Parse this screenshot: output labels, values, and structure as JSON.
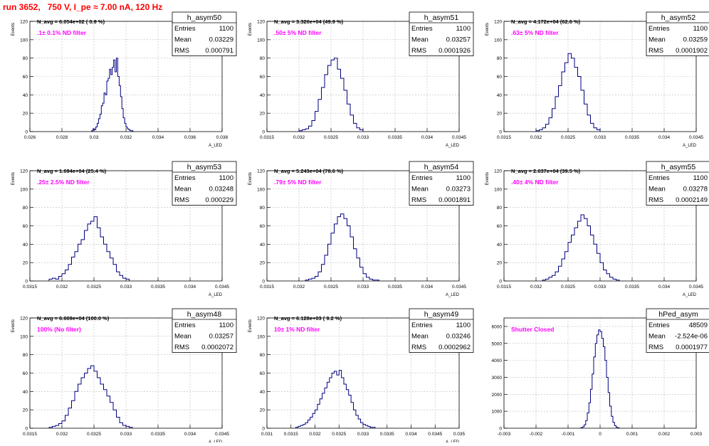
{
  "run_title": "run 3652,   750 V, I_pe ≈ 7.00 nA, 120 Hz",
  "colors": {
    "hist": "#000080",
    "annotation": "#ff00ff",
    "title": "#ff0000",
    "grid": "#bbbbbb"
  },
  "chart_data": [
    {
      "type": "histogram",
      "name": "h_asym50",
      "ylabel": "Events",
      "xlabel": "A_LED",
      "xlim": [
        0.026,
        0.04
      ],
      "ylim": [
        0,
        120
      ],
      "xticks": [
        "0.026",
        "0.028",
        "0.03",
        "0.032",
        "0.034",
        "0.036",
        "0.038"
      ],
      "yticks": [
        "0",
        "20",
        "40",
        "60",
        "80",
        "100",
        "120"
      ],
      "n_avg": "N_avg = 6.054e+02 ( 0.9 %)",
      "filter": ".1± 0.1% ND filter",
      "stats": [
        [
          "Entries",
          "1100"
        ],
        [
          "Mean",
          "0.03229"
        ],
        [
          "RMS",
          "0.000791"
        ]
      ],
      "bin_edges": [
        0.0305,
        0.0306,
        0.0307,
        0.0308,
        0.0309,
        0.031,
        0.0311,
        0.0312,
        0.0313,
        0.0314,
        0.0315,
        0.0316,
        0.0317,
        0.0318,
        0.0319,
        0.032,
        0.0321,
        0.0322,
        0.0323,
        0.0324,
        0.0325,
        0.0326,
        0.0327,
        0.0328,
        0.0329,
        0.033,
        0.0331,
        0.0332,
        0.0333,
        0.0334,
        0.0335,
        0.0336
      ],
      "counts": [
        1,
        3,
        2,
        5,
        9,
        14,
        19,
        28,
        31,
        42,
        40,
        55,
        58,
        68,
        62,
        70,
        78,
        65,
        80,
        60,
        50,
        38,
        25,
        15,
        9,
        5,
        3,
        2,
        1,
        1,
        0
      ]
    },
    {
      "type": "histogram",
      "name": "h_asym51",
      "ylabel": "Events",
      "xlabel": "A_LED",
      "xlim": [
        0.0315,
        0.0345
      ],
      "ylim": [
        0,
        120
      ],
      "xticks": [
        "0.0315",
        "0.032",
        "0.0325",
        "0.033",
        "0.0335",
        "0.034",
        "0.0345"
      ],
      "yticks": [
        "0",
        "20",
        "40",
        "60",
        "80",
        "100",
        "120"
      ],
      "n_avg": "N_avg = 3.326e+04 (49.9 %)",
      "filter": ".50± 5% ND filter",
      "stats": [
        [
          "Entries",
          "1100"
        ],
        [
          "Mean",
          "0.03257"
        ],
        [
          "RMS",
          "0.0001926"
        ]
      ],
      "bin_edges": [
        0.032,
        0.03205,
        0.0321,
        0.03215,
        0.0322,
        0.03225,
        0.0323,
        0.03235,
        0.0324,
        0.03245,
        0.0325,
        0.03255,
        0.0326,
        0.03265,
        0.0327,
        0.03275,
        0.0328,
        0.03285,
        0.0329,
        0.03295,
        0.033
      ],
      "counts": [
        1,
        2,
        3,
        6,
        12,
        22,
        35,
        48,
        62,
        72,
        78,
        80,
        68,
        58,
        45,
        30,
        18,
        9,
        4,
        2
      ]
    },
    {
      "type": "histogram",
      "name": "h_asym52",
      "ylabel": "Events",
      "xlabel": "A_LED",
      "xlim": [
        0.0315,
        0.0345
      ],
      "ylim": [
        0,
        120
      ],
      "xticks": [
        "0.0315",
        "0.032",
        "0.0325",
        "0.033",
        "0.0335",
        "0.034",
        "0.0345"
      ],
      "yticks": [
        "0",
        "20",
        "40",
        "60",
        "80",
        "100",
        "120"
      ],
      "n_avg": "N_avg = 4.172e+04 (62.6 %)",
      "filter": ".63± 5% ND filter",
      "stats": [
        [
          "Entries",
          "1100"
        ],
        [
          "Mean",
          "0.03259"
        ],
        [
          "RMS",
          "0.0001902"
        ]
      ],
      "bin_edges": [
        0.032,
        0.03205,
        0.0321,
        0.03215,
        0.0322,
        0.03225,
        0.0323,
        0.03235,
        0.0324,
        0.03245,
        0.0325,
        0.03255,
        0.0326,
        0.03265,
        0.0327,
        0.03275,
        0.0328,
        0.03285,
        0.0329,
        0.03295,
        0.033
      ],
      "counts": [
        1,
        2,
        4,
        8,
        15,
        25,
        38,
        50,
        65,
        75,
        85,
        80,
        70,
        60,
        45,
        30,
        18,
        9,
        4,
        2
      ]
    },
    {
      "type": "histogram",
      "name": "h_asym53",
      "ylabel": "Events",
      "xlabel": "A_LED",
      "xlim": [
        0.0315,
        0.0345
      ],
      "ylim": [
        0,
        120
      ],
      "xticks": [
        "0.0315",
        "0.032",
        "0.0325",
        "0.033",
        "0.0335",
        "0.034",
        "0.0345"
      ],
      "yticks": [
        "0",
        "20",
        "40",
        "60",
        "80",
        "100",
        "120"
      ],
      "n_avg": "N_avg = 1.694e+04 (25.4 %)",
      "filter": ".25± 2.5% ND filter",
      "stats": [
        [
          "Entries",
          "1100"
        ],
        [
          "Mean",
          "0.03248"
        ],
        [
          "RMS",
          "0.000229"
        ]
      ],
      "bin_edges": [
        0.0318,
        0.03185,
        0.0319,
        0.03195,
        0.032,
        0.03205,
        0.0321,
        0.03215,
        0.0322,
        0.03225,
        0.0323,
        0.03235,
        0.0324,
        0.03245,
        0.0325,
        0.03255,
        0.0326,
        0.03265,
        0.0327,
        0.03275,
        0.0328,
        0.03285,
        0.0329,
        0.03295,
        0.033,
        0.03305
      ],
      "counts": [
        2,
        3,
        2,
        5,
        8,
        12,
        18,
        26,
        32,
        40,
        45,
        55,
        62,
        65,
        70,
        58,
        48,
        40,
        32,
        25,
        18,
        10,
        6,
        3,
        2
      ]
    },
    {
      "type": "histogram",
      "name": "h_asym54",
      "ylabel": "Events",
      "xlabel": "A_LED",
      "xlim": [
        0.0315,
        0.0345
      ],
      "ylim": [
        0,
        120
      ],
      "xticks": [
        "0.0315",
        "0.032",
        "0.0325",
        "0.033",
        "0.0335",
        "0.034",
        "0.0345"
      ],
      "yticks": [
        "0",
        "20",
        "40",
        "60",
        "80",
        "100",
        "120"
      ],
      "n_avg": "N_avg = 5.243e+04 (78.6 %)",
      "filter": ".79± 5% ND filter",
      "stats": [
        [
          "Entries",
          "1100"
        ],
        [
          "Mean",
          "0.03273"
        ],
        [
          "RMS",
          "0.0001891"
        ]
      ],
      "bin_edges": [
        0.0321,
        0.03215,
        0.0322,
        0.03225,
        0.0323,
        0.03235,
        0.0324,
        0.03245,
        0.0325,
        0.03255,
        0.0326,
        0.03265,
        0.0327,
        0.03275,
        0.0328,
        0.03285,
        0.0329,
        0.03295,
        0.033,
        0.03305,
        0.0331,
        0.03315,
        0.0332,
        0.03325
      ],
      "counts": [
        1,
        2,
        3,
        5,
        10,
        18,
        28,
        40,
        52,
        62,
        70,
        73,
        68,
        60,
        48,
        35,
        25,
        15,
        8,
        4,
        2,
        1,
        1
      ]
    },
    {
      "type": "histogram",
      "name": "h_asym55",
      "ylabel": "Events",
      "xlabel": "A_LED",
      "xlim": [
        0.0315,
        0.0345
      ],
      "ylim": [
        0,
        120
      ],
      "xticks": [
        "0.0315",
        "0.032",
        "0.0325",
        "0.033",
        "0.0335",
        "0.034",
        "0.0345"
      ],
      "yticks": [
        "0",
        "20",
        "40",
        "60",
        "80",
        "100",
        "120"
      ],
      "n_avg": "N_avg = 2.637e+04 (39.5 %)",
      "filter": ".40± 4% ND filter",
      "stats": [
        [
          "Entries",
          "1100"
        ],
        [
          "Mean",
          "0.03278"
        ],
        [
          "RMS",
          "0.0002149"
        ]
      ],
      "bin_edges": [
        0.0321,
        0.03215,
        0.0322,
        0.03225,
        0.0323,
        0.03235,
        0.0324,
        0.03245,
        0.0325,
        0.03255,
        0.0326,
        0.03265,
        0.0327,
        0.03275,
        0.0328,
        0.03285,
        0.0329,
        0.03295,
        0.033,
        0.03305,
        0.0331,
        0.03315,
        0.0332,
        0.03325,
        0.0333
      ],
      "counts": [
        1,
        2,
        4,
        6,
        10,
        16,
        24,
        32,
        42,
        50,
        58,
        65,
        72,
        68,
        60,
        50,
        40,
        30,
        20,
        12,
        8,
        4,
        2,
        1
      ]
    },
    {
      "type": "histogram",
      "name": "h_asym48",
      "ylabel": "Events",
      "xlabel": "A_LED",
      "xlim": [
        0.0315,
        0.0345
      ],
      "ylim": [
        0,
        120
      ],
      "xticks": [
        "0.0315",
        "0.032",
        "0.0325",
        "0.033",
        "0.0335",
        "0.034",
        "0.0345"
      ],
      "yticks": [
        "0",
        "20",
        "40",
        "60",
        "80",
        "100",
        "120"
      ],
      "n_avg": "N_avg = 6.669e+04 (100.0 %)",
      "filter": "100% (No filter)",
      "stats": [
        [
          "Entries",
          "1100"
        ],
        [
          "Mean",
          "0.03257"
        ],
        [
          "RMS",
          "0.0002072"
        ]
      ],
      "bin_edges": [
        0.0318,
        0.03185,
        0.0319,
        0.03195,
        0.032,
        0.03205,
        0.0321,
        0.03215,
        0.0322,
        0.03225,
        0.0323,
        0.03235,
        0.0324,
        0.03245,
        0.0325,
        0.03255,
        0.0326,
        0.03265,
        0.0327,
        0.03275,
        0.0328,
        0.03285,
        0.0329,
        0.03295,
        0.033,
        0.03305,
        0.0331
      ],
      "counts": [
        1,
        2,
        3,
        5,
        8,
        14,
        22,
        30,
        40,
        48,
        55,
        60,
        65,
        68,
        62,
        55,
        48,
        42,
        35,
        28,
        20,
        12,
        6,
        3,
        2,
        1
      ]
    },
    {
      "type": "histogram",
      "name": "h_asym49",
      "ylabel": "Events",
      "xlabel": "A_LED",
      "xlim": [
        0.031,
        0.035
      ],
      "ylim": [
        0,
        120
      ],
      "xticks": [
        "0.031",
        "0.0315",
        "0.032",
        "0.0325",
        "0.033",
        "0.0335",
        "0.034",
        "0.0345",
        "0.035"
      ],
      "yticks": [
        "0",
        "20",
        "40",
        "60",
        "80",
        "100",
        "120"
      ],
      "n_avg": "N_avg = 6.128e+03 ( 9.2 %)",
      "filter": "10± 1% ND filter",
      "stats": [
        [
          "Entries",
          "1100"
        ],
        [
          "Mean",
          "0.03246"
        ],
        [
          "RMS",
          "0.0002962"
        ]
      ],
      "bin_edges": [
        0.0316,
        0.03165,
        0.0317,
        0.03175,
        0.0318,
        0.03185,
        0.0319,
        0.03195,
        0.032,
        0.03205,
        0.0321,
        0.03215,
        0.0322,
        0.03225,
        0.0323,
        0.03235,
        0.0324,
        0.03245,
        0.0325,
        0.03255,
        0.0326,
        0.03265,
        0.0327,
        0.03275,
        0.0328,
        0.03285,
        0.0329,
        0.03295,
        0.033,
        0.03305,
        0.0331,
        0.03315,
        0.0332,
        0.03325
      ],
      "counts": [
        1,
        2,
        3,
        4,
        6,
        9,
        12,
        16,
        20,
        26,
        32,
        38,
        44,
        50,
        55,
        60,
        62,
        58,
        63,
        55,
        48,
        42,
        36,
        28,
        20,
        14,
        10,
        6,
        4,
        3,
        2,
        1,
        1
      ]
    },
    {
      "type": "histogram",
      "name": "hPed_asym",
      "ylabel": "",
      "xlabel": "",
      "xlim": [
        -0.003,
        0.003
      ],
      "ylim": [
        0,
        6500
      ],
      "xticks": [
        "-0.003",
        "-0.002",
        "-0.001",
        "0",
        "0.001",
        "0.002",
        "0.003"
      ],
      "yticks": [
        "0",
        "1000",
        "2000",
        "3000",
        "4000",
        "5000",
        "6000"
      ],
      "n_avg": "",
      "filter": "Shutter Closed",
      "stats": [
        [
          "Entries",
          "48509"
        ],
        [
          "Mean",
          "-2.524e-06"
        ],
        [
          "RMS",
          "0.0001977"
        ]
      ],
      "bin_edges": [
        -0.0006,
        -0.00055,
        -0.0005,
        -0.00045,
        -0.0004,
        -0.00035,
        -0.0003,
        -0.00025,
        -0.0002,
        -0.00015,
        -0.0001,
        -5e-05,
        0.0,
        5e-05,
        0.0001,
        0.00015,
        0.0002,
        0.00025,
        0.0003,
        0.00035,
        0.0004,
        0.00045,
        0.0005,
        0.00055,
        0.0006
      ],
      "counts": [
        30,
        80,
        200,
        450,
        900,
        1500,
        2300,
        3200,
        4200,
        5000,
        5500,
        5800,
        5700,
        5300,
        4800,
        4000,
        3000,
        2100,
        1300,
        700,
        350,
        150,
        60,
        20
      ]
    }
  ]
}
